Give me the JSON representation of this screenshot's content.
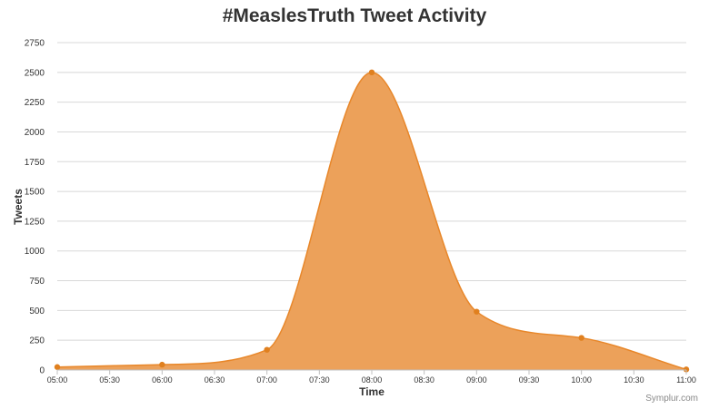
{
  "chart_data": {
    "type": "area",
    "title": "#MeaslesTruth Tweet Activity",
    "xlabel": "Time",
    "ylabel": "Tweets",
    "x_ticks": [
      "05:00",
      "05:30",
      "06:00",
      "06:30",
      "07:00",
      "07:30",
      "08:00",
      "08:30",
      "09:00",
      "09:30",
      "10:00",
      "10:30",
      "11:00"
    ],
    "y_ticks": [
      0,
      250,
      500,
      750,
      1000,
      1250,
      1500,
      1750,
      2000,
      2250,
      2500,
      2750
    ],
    "ylim": [
      0,
      2750
    ],
    "grid": true,
    "legend": "none",
    "points": [
      {
        "x": "05:00",
        "y": 25
      },
      {
        "x": "06:00",
        "y": 45
      },
      {
        "x": "07:00",
        "y": 170
      },
      {
        "x": "08:00",
        "y": 2500
      },
      {
        "x": "09:00",
        "y": 490
      },
      {
        "x": "10:00",
        "y": 270
      },
      {
        "x": "11:00",
        "y": 5
      }
    ],
    "colors": {
      "fill": "#eca15a",
      "line": "#e8872a",
      "marker": "#e0801f",
      "grid": "#d8d8d8"
    }
  },
  "credit": "Symplur.com"
}
